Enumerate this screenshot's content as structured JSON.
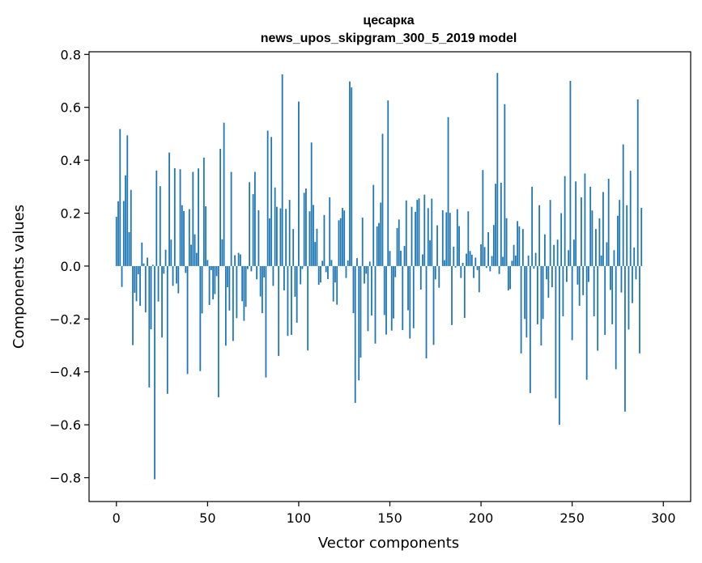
{
  "chart_data": {
    "type": "bar",
    "title": "цесарка",
    "subtitle": "news_upos_skipgram_300_5_2019 model",
    "xlabel": "Vector components",
    "ylabel": "Components values",
    "xlim": [
      -15,
      315
    ],
    "ylim": [
      -0.89,
      0.81
    ],
    "xticks": [
      0,
      50,
      100,
      150,
      200,
      250,
      300
    ],
    "xtick_labels": [
      "0",
      "50",
      "100",
      "150",
      "200",
      "250",
      "300"
    ],
    "yticks": [
      -0.8,
      -0.6,
      -0.4,
      -0.2,
      0.0,
      0.2,
      0.4,
      0.6,
      0.8
    ],
    "ytick_labels": [
      "−0.8",
      "−0.6",
      "−0.4",
      "−0.2",
      "0.0",
      "0.2",
      "0.4",
      "0.6",
      "0.8"
    ],
    "bar_color": "#1f77b4",
    "grid": false,
    "values": [
      0.186,
      0.245,
      0.518,
      -0.079,
      0.246,
      0.343,
      0.494,
      0.128,
      0.288,
      -0.299,
      -0.101,
      -0.133,
      -0.031,
      -0.15,
      0.089,
      0.01,
      -0.175,
      0.032,
      -0.459,
      -0.239,
      0.005,
      -0.806,
      0.361,
      -0.134,
      0.302,
      -0.27,
      -0.029,
      0.062,
      -0.483,
      0.429,
      0.1,
      -0.075,
      0.37,
      -0.066,
      -0.103,
      0.366,
      0.23,
      0.208,
      -0.026,
      -0.408,
      0.215,
      0.081,
      0.356,
      0.12,
      0.05,
      0.369,
      -0.397,
      -0.179,
      0.41,
      0.226,
      0.023,
      -0.147,
      -0.015,
      -0.126,
      -0.106,
      -0.038,
      -0.496,
      0.443,
      0.101,
      0.542,
      -0.301,
      -0.08,
      -0.168,
      0.356,
      -0.283,
      0.041,
      -0.197,
      0.05,
      0.044,
      -0.133,
      -0.207,
      -0.154,
      -0.011,
      0.317,
      -0.02,
      0.272,
      0.356,
      -0.05,
      0.211,
      -0.115,
      -0.178,
      -0.043,
      -0.421,
      0.512,
      0.18,
      0.488,
      -0.075,
      0.297,
      0.224,
      -0.34,
      0.218,
      0.725,
      -0.092,
      0.216,
      -0.264,
      0.25,
      -0.26,
      0.14,
      -0.116,
      -0.214,
      0.622,
      -0.069,
      -0.011,
      0.277,
      0.293,
      -0.319,
      0.207,
      0.467,
      0.231,
      0.091,
      0.141,
      -0.071,
      -0.062,
      0.02,
      0.193,
      -0.023,
      -0.049,
      0.26,
      0.023,
      -0.134,
      -0.062,
      -0.146,
      0.173,
      0.181,
      0.22,
      0.21,
      -0.045,
      0.021,
      0.698,
      0.675,
      -0.178,
      -0.517,
      0.03,
      -0.432,
      -0.346,
      0.183,
      -0.066,
      -0.029,
      -0.246,
      0.017,
      -0.187,
      0.307,
      -0.293,
      0.15,
      0.163,
      0.24,
      0.5,
      -0.185,
      -0.259,
      0.626,
      0.057,
      -0.244,
      -0.198,
      -0.042,
      0.144,
      0.176,
      0.058,
      -0.242,
      0.076,
      0.248,
      -0.167,
      -0.274,
      0.224,
      -0.235,
      0.205,
      0.25,
      0.256,
      -0.089,
      0.044,
      0.27,
      -0.349,
      0.219,
      0.097,
      0.255,
      -0.298,
      -0.05,
      0.154,
      -0.082,
      0.0,
      0.211,
      0.022,
      0.203,
      0.563,
      0.201,
      -0.223,
      0.073,
      -0.006,
      0.215,
      0.151,
      -0.045,
      0.012,
      -0.196,
      0.047,
      0.207,
      0.057,
      0.043,
      -0.045,
      0.032,
      -0.015,
      -0.099,
      0.082,
      0.363,
      0.072,
      -0.007,
      0.128,
      -0.02,
      0.038,
      0.155,
      0.311,
      0.73,
      -0.03,
      0.315,
      0.035,
      0.612,
      0.181,
      -0.092,
      -0.087,
      0.02,
      0.08,
      0.04,
      0.17,
      0.15,
      -0.33,
      0.14,
      -0.2,
      -0.27,
      0.04,
      -0.48,
      0.3,
      -0.01,
      0.05,
      -0.22,
      0.23,
      -0.3,
      -0.2,
      0.12,
      -0.05,
      -0.12,
      0.25,
      -0.08,
      0.08,
      -0.5,
      0.1,
      -0.6,
      0.2,
      -0.19,
      0.34,
      -0.06,
      0.06,
      0.7,
      -0.28,
      0.1,
      0.32,
      -0.07,
      -0.15,
      0.26,
      -0.11,
      0.35,
      -0.43,
      -0.06,
      0.3,
      0.21,
      -0.19,
      0.14,
      -0.32,
      0.18,
      0.04,
      0.28,
      -0.26,
      0.09,
      0.33,
      -0.09,
      -0.22,
      0.06,
      -0.39,
      0.19,
      0.25,
      -0.1,
      0.46,
      -0.55,
      0.23,
      -0.24,
      0.36,
      -0.14,
      0.07,
      -0.05,
      0.63,
      -0.33,
      0.22
    ]
  }
}
